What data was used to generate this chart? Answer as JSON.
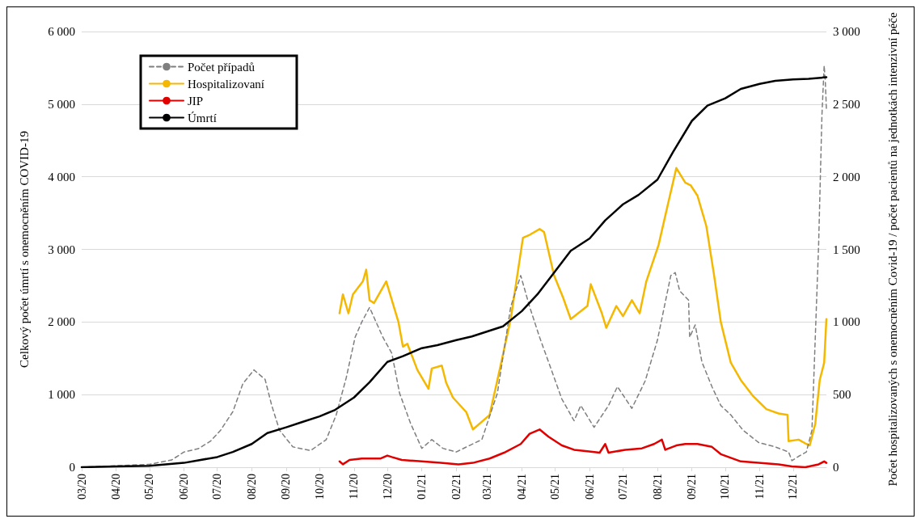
{
  "chart_data": {
    "type": "line",
    "xlabel": null,
    "ylabel": "Celkový počet úmrtí s onemocněním COVID-19",
    "y2label": "Počet hospitalizovaných s onemocněním Covid-19 / počet pacientů na jednotkách intenzivní péče",
    "marker": "none",
    "grid": "y",
    "legend": "top left",
    "xlim": [
      "2020-03-01",
      "2021-12-31"
    ],
    "xticks": [
      {
        "value": "2020-03-01",
        "label": "03/20"
      },
      {
        "value": "2020-04-01",
        "label": "04/20"
      },
      {
        "value": "2020-05-01",
        "label": "05/20"
      },
      {
        "value": "2020-06-01",
        "label": "06/20"
      },
      {
        "value": "2020-07-01",
        "label": "07/20"
      },
      {
        "value": "2020-08-01",
        "label": "08/20"
      },
      {
        "value": "2020-09-01",
        "label": "09/20"
      },
      {
        "value": "2020-10-01",
        "label": "10/20"
      },
      {
        "value": "2020-11-01",
        "label": "11/20"
      },
      {
        "value": "2020-12-01",
        "label": "12/20"
      },
      {
        "value": "2021-01-01",
        "label": "01/21"
      },
      {
        "value": "2021-02-01",
        "label": "02/21"
      },
      {
        "value": "2021-03-01",
        "label": "03/21"
      },
      {
        "value": "2021-04-01",
        "label": "04/21"
      },
      {
        "value": "2021-05-01",
        "label": "05/21"
      },
      {
        "value": "2021-06-01",
        "label": "06/21"
      },
      {
        "value": "2021-07-01",
        "label": "07/21"
      },
      {
        "value": "2021-08-01",
        "label": "08/21"
      },
      {
        "value": "2021-09-01",
        "label": "09/21"
      },
      {
        "value": "2021-10-01",
        "label": "10/21"
      },
      {
        "value": "2021-11-01",
        "label": "11/21"
      },
      {
        "value": "2021-12-01",
        "label": "12/21"
      }
    ],
    "ylim": [
      0,
      6000
    ],
    "yticks": [
      0,
      {
        "value": 1000,
        "label": "1 000"
      },
      {
        "value": 2000,
        "label": "2 000"
      },
      {
        "value": 3000,
        "label": "3 000"
      },
      {
        "value": 4000,
        "label": "4 000"
      },
      {
        "value": 5000,
        "label": "5 000"
      },
      {
        "value": 6000,
        "label": "6 000"
      }
    ],
    "y2lim": [
      0,
      3000
    ],
    "y2ticks": [
      0,
      500,
      {
        "value": 1000,
        "label": "1 000"
      },
      {
        "value": 1500,
        "label": "1 500"
      },
      {
        "value": 2000,
        "label": "2 000"
      },
      {
        "value": 2500,
        "label": "2 500"
      },
      {
        "value": 3000,
        "label": "3 000"
      }
    ],
    "series": [
      {
        "name": "Počet případů",
        "color": "#7f7f7f",
        "line_style": "dashed",
        "x": [
          "2020-03-01",
          "2020-04-01",
          "2020-05-01",
          "2020-05-21",
          "2020-06-01",
          "2020-06-14",
          "2020-06-25",
          "2020-07-04",
          "2020-07-15",
          "2020-07-24",
          "2020-08-03",
          "2020-08-13",
          "2020-08-19",
          "2020-08-26",
          "2020-09-07",
          "2020-09-23",
          "2020-10-07",
          "2020-10-16",
          "2020-10-25",
          "2020-11-02",
          "2020-11-08",
          "2020-11-15",
          "2020-11-27",
          "2020-12-05",
          "2020-12-12",
          "2020-12-22",
          "2021-01-01",
          "2021-01-10",
          "2021-01-20",
          "2021-02-01",
          "2021-02-13",
          "2021-02-24",
          "2021-03-10",
          "2021-03-22",
          "2021-03-31",
          "2021-04-08",
          "2021-04-17",
          "2021-04-25",
          "2021-05-07",
          "2021-05-18",
          "2021-05-24",
          "2021-06-05",
          "2021-06-18",
          "2021-06-26",
          "2021-07-09",
          "2021-07-21",
          "2021-08-01",
          "2021-08-13",
          "2021-08-17",
          "2021-08-21",
          "2021-08-29",
          "2021-08-30",
          "2021-09-04",
          "2021-09-10",
          "2021-09-19",
          "2021-09-27",
          "2021-10-06",
          "2021-10-17",
          "2021-10-31",
          "2021-11-15",
          "2021-11-27",
          "2021-11-30",
          "2021-12-06",
          "2021-12-13",
          "2021-12-18",
          "2021-12-24",
          "2021-12-27",
          "2021-12-29",
          "2021-12-30",
          "2021-12-31"
        ],
        "values": [
          0,
          20,
          40,
          100,
          210,
          255,
          360,
          510,
          765,
          1150,
          1340,
          1210,
          850,
          510,
          280,
          230,
          380,
          720,
          1230,
          1790,
          2000,
          2200,
          1790,
          1570,
          1020,
          600,
          260,
          380,
          260,
          210,
          300,
          380,
          1020,
          2210,
          2640,
          2210,
          1790,
          1450,
          940,
          640,
          850,
          550,
          850,
          1110,
          810,
          1190,
          1750,
          2640,
          2680,
          2430,
          2300,
          1790,
          1960,
          1450,
          1110,
          850,
          720,
          510,
          340,
          280,
          210,
          90,
          150,
          210,
          510,
          3060,
          4850,
          5530,
          5320,
          4940
        ]
      },
      {
        "name": "Hospitalizovaní",
        "color": "#f5b800",
        "axis": "y2",
        "x": [
          "2020-10-19",
          "2020-10-22",
          "2020-10-27",
          "2020-10-31",
          "2020-11-09",
          "2020-11-12",
          "2020-11-15",
          "2020-11-19",
          "2020-11-30",
          "2020-12-11",
          "2020-12-15",
          "2020-12-19",
          "2020-12-28",
          "2021-01-07",
          "2021-01-10",
          "2021-01-19",
          "2021-01-23",
          "2021-01-29",
          "2021-02-10",
          "2021-02-16",
          "2021-03-03",
          "2021-03-10",
          "2021-03-22",
          "2021-04-02",
          "2021-04-08",
          "2021-04-17",
          "2021-04-21",
          "2021-04-30",
          "2021-05-08",
          "2021-05-15",
          "2021-05-30",
          "2021-06-02",
          "2021-06-12",
          "2021-06-16",
          "2021-06-25",
          "2021-07-01",
          "2021-07-09",
          "2021-07-16",
          "2021-07-22",
          "2021-08-02",
          "2021-08-11",
          "2021-08-18",
          "2021-08-26",
          "2021-08-31",
          "2021-09-06",
          "2021-09-14",
          "2021-09-21",
          "2021-09-27",
          "2021-10-06",
          "2021-10-15",
          "2021-10-26",
          "2021-11-07",
          "2021-11-18",
          "2021-11-26",
          "2021-11-27",
          "2021-12-06",
          "2021-12-13",
          "2021-12-16",
          "2021-12-21",
          "2021-12-25",
          "2021-12-29",
          "2021-12-31"
        ],
        "values": [
          1060,
          1190,
          1060,
          1190,
          1280,
          1360,
          1150,
          1130,
          1280,
          1000,
          830,
          850,
          670,
          540,
          680,
          700,
          580,
          480,
          380,
          260,
          360,
          600,
          1020,
          1580,
          1600,
          1640,
          1620,
          1320,
          1170,
          1020,
          1110,
          1260,
          1060,
          960,
          1110,
          1040,
          1150,
          1060,
          1280,
          1530,
          1830,
          2060,
          1960,
          1940,
          1870,
          1660,
          1320,
          1000,
          720,
          600,
          490,
          400,
          370,
          360,
          180,
          190,
          160,
          150,
          300,
          600,
          720,
          1020
        ]
      },
      {
        "name": "JIP",
        "color": "#e00000",
        "axis": "y2",
        "x": [
          "2020-10-19",
          "2020-10-22",
          "2020-10-28",
          "2020-11-08",
          "2020-11-25",
          "2020-12-01",
          "2020-12-05",
          "2020-12-14",
          "2021-01-01",
          "2021-01-18",
          "2021-02-03",
          "2021-02-16",
          "2021-03-03",
          "2021-03-16",
          "2021-03-31",
          "2021-04-08",
          "2021-04-17",
          "2021-04-25",
          "2021-05-07",
          "2021-05-18",
          "2021-05-30",
          "2021-06-10",
          "2021-06-15",
          "2021-06-18",
          "2021-07-03",
          "2021-07-18",
          "2021-07-29",
          "2021-08-05",
          "2021-08-08",
          "2021-08-18",
          "2021-08-26",
          "2021-09-06",
          "2021-09-19",
          "2021-09-27",
          "2021-10-15",
          "2021-10-31",
          "2021-11-18",
          "2021-11-30",
          "2021-12-12",
          "2021-12-24",
          "2021-12-29",
          "2021-12-31"
        ],
        "values": [
          40,
          20,
          50,
          60,
          60,
          80,
          70,
          50,
          40,
          30,
          20,
          30,
          60,
          100,
          160,
          230,
          260,
          210,
          150,
          120,
          110,
          100,
          160,
          100,
          120,
          130,
          160,
          190,
          120,
          150,
          160,
          160,
          140,
          90,
          40,
          30,
          20,
          5,
          0,
          20,
          40,
          30
        ]
      },
      {
        "name": "Úmrtí",
        "color": "#000000",
        "x": [
          "2020-03-01",
          "2020-04-01",
          "2020-05-01",
          "2020-06-01",
          "2020-07-01",
          "2020-07-15",
          "2020-08-01",
          "2020-08-15",
          "2020-09-01",
          "2020-09-15",
          "2020-10-01",
          "2020-10-15",
          "2020-11-01",
          "2020-11-15",
          "2020-12-01",
          "2020-12-15",
          "2021-01-01",
          "2021-01-15",
          "2021-02-01",
          "2021-02-15",
          "2021-03-01",
          "2021-03-15",
          "2021-04-01",
          "2021-04-15",
          "2021-05-01",
          "2021-05-15",
          "2021-06-01",
          "2021-06-15",
          "2021-07-01",
          "2021-07-15",
          "2021-08-01",
          "2021-08-15",
          "2021-09-01",
          "2021-09-15",
          "2021-10-01",
          "2021-10-15",
          "2021-11-01",
          "2021-11-15",
          "2021-12-01",
          "2021-12-15",
          "2021-12-31"
        ],
        "values": [
          0,
          10,
          20,
          60,
          140,
          210,
          320,
          470,
          550,
          620,
          700,
          790,
          960,
          1170,
          1450,
          1530,
          1640,
          1680,
          1750,
          1800,
          1870,
          1940,
          2150,
          2380,
          2700,
          2980,
          3150,
          3400,
          3620,
          3750,
          3960,
          4340,
          4770,
          4980,
          5080,
          5210,
          5280,
          5320,
          5340,
          5350,
          5370
        ]
      }
    ]
  }
}
